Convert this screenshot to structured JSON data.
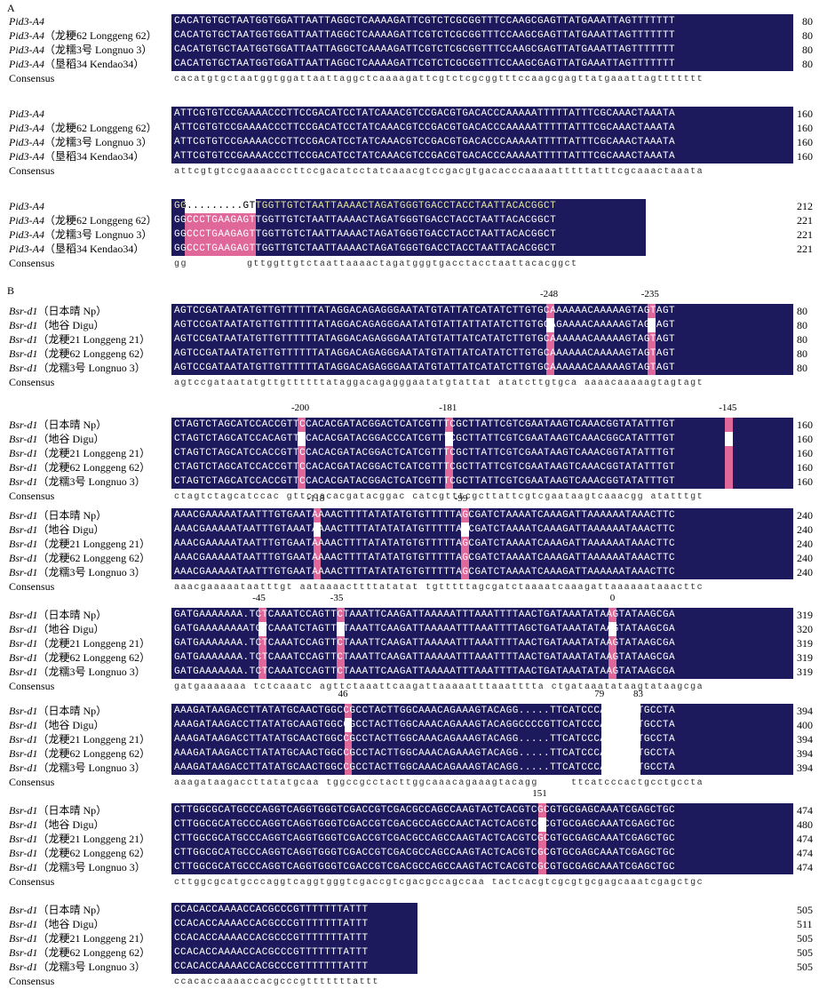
{
  "figure": {
    "panel_a": "A",
    "panel_b": "B",
    "consensus_label": "Consensus"
  },
  "panel_a": {
    "names": [
      {
        "gene": "Pid3-A4",
        "variety": ""
      },
      {
        "gene": "Pid3-A4",
        "variety": "（龙粳62 Longgeng 62）"
      },
      {
        "gene": "Pid3-A4",
        "variety": "（龙糯3号 Longnuo 3）"
      },
      {
        "gene": "Pid3-A4",
        "variety": "（垦稻34 Kendao34）"
      }
    ],
    "blocks": [
      {
        "seqs": [
          "CACATGTGCTAATGGTGGATTAATTAGGCTCAAAAGATTCGTCTCGCGGTTTCCAAGCGAGTTATGAAATTAGTTTTTTT",
          "CACATGTGCTAATGGTGGATTAATTAGGCTCAAAAGATTCGTCTCGCGGTTTCCAAGCGAGTTATGAAATTAGTTTTTTT",
          "CACATGTGCTAATGGTGGATTAATTAGGCTCAAAAGATTCGTCTCGCGGTTTCCAAGCGAGTTATGAAATTAGTTTTTTT",
          "CACATGTGCTAATGGTGGATTAATTAGGCTCAAAAGATTCGTCTCGCGGTTTCCAAGCGAGTTATGAAATTAGTTTTTTT"
        ],
        "consensus": "cacatgtgctaatggtggattaattaggctcaaaagattcgtctcgcggtttccaagcgagttatgaaattagttttttt",
        "ends": [
          "80",
          "80",
          "80",
          "80"
        ]
      },
      {
        "seqs": [
          "ATTCGTGTCCGAAAACCCTTCCGACATCCTATCAAACGTCCGACGTGACACCCAAAAATTTTTATTTCGCAAACTAAATA",
          "ATTCGTGTCCGAAAACCCTTCCGACATCCTATCAAACGTCCGACGTGACACCCAAAAATTTTTATTTCGCAAACTAAATA",
          "ATTCGTGTCCGAAAACCCTTCCGACATCCTATCAAACGTCCGACGTGACACCCAAAAATTTTTATTTCGCAAACTAAATA",
          "ATTCGTGTCCGAAAACCCTTCCGACATCCTATCAAACGTCCGACGTGACACCCAAAAATTTTTATTTCGCAAACTAAATA"
        ],
        "consensus": "attcgtgtccgaaaacccttccgacatcctatcaaacgtccgacgtgacacccaaaaatttttatttcgcaaactaaata",
        "ends": [
          "160",
          "160",
          "160",
          "160"
        ]
      },
      {
        "seqs": [
          "GG.........GTTGGTTGTCTAATTAAAACTAGATGGGTGACCTACCTAATTACACGGCT",
          "GGCCCTGAAGAGTTGGTTGTCTAATTAAAACTAGATGGGTGACCTACCTAATTACACGGCT",
          "GGCCCTGAAGAGTTGGTTGTCTAATTAAAACTAGATGGGTGACCTACCTAATTACACGGCT",
          "GGCCCTGAAGAGTTGGTTGTCTAATTAAAACTAGATGGGTGACCTACCTAATTACACGGCT"
        ],
        "consensus": "gg         gttggttgtctaattaaaactagatgggtgacctacctaattacacggct",
        "ends": [
          "212",
          "221",
          "221",
          "221"
        ]
      }
    ]
  },
  "panel_b": {
    "names": [
      {
        "gene": "Bsr-d1",
        "variety": "（日本晴  Np）"
      },
      {
        "gene": "Bsr-d1",
        "variety": "（地谷 Digu）"
      },
      {
        "gene": "Bsr-d1",
        "variety": "（龙粳21 Longgeng 21）"
      },
      {
        "gene": "Bsr-d1",
        "variety": "（龙粳62 Longgeng 62）"
      },
      {
        "gene": "Bsr-d1",
        "variety": "（龙糯3号 Longnuo 3）"
      }
    ],
    "blocks": [
      {
        "positions": [
          "-248",
          "-235"
        ],
        "seqs": [
          "AGTCCGATAATATGTTGTTTTTTATAGGACAGAGGGAATATGTATTATCATATCTTGTGCAAAAAACAAAAAGTAGTAGT",
          "AGTCCGATAATATGTTGTTTTTTATAGGACAGAGGGAATATGTATTATTATATCTTGTGCAGAAAACAAAAAGTAGTAGT",
          "AGTCCGATAATATGTTGTTTTTTATAGGACAGAGGGAATATGTATTATCATATCTTGTGCAAAAAACAAAAAGTAGTAGT",
          "AGTCCGATAATATGTTGTTTTTTATAGGACAGAGGGAATATGTATTATCATATCTTGTGCAAAAAACAAAAAGTAGTAGT",
          "AGTCCGATAATATGTTGTTTTTTATAGGACAGAGGGAATATGTATTATCATATCTTGTGCAAAAAACAAAAAGTAGTAGT"
        ],
        "consensus": "agtccgataatatgttgttttttataggacagagggaatatgtattat atatcttgtgca aaaacaaaaagtagtagt",
        "ends": [
          "80",
          "80",
          "80",
          "80",
          "80"
        ]
      },
      {
        "positions": [
          "-200",
          "-181",
          "-145"
        ],
        "seqs": [
          "CTAGTCTAGCATCCACCGTTCCACACGATACGGACTCATCGTTTCGCTTATTCGTCGAATAAGTCAAACGGTATATTTGT",
          "CTAGTCTAGCATCCACAGTTCCACACGATACGGACCCATCGTTTCGCTTATTCGTCGAATAAGTCAAACGGCATATTTGT",
          "CTAGTCTAGCATCCACCGTTCCACACGATACGGACTCATCGTTTCGCTTATTCGTCGAATAAGTCAAACGGTATATTTGT",
          "CTAGTCTAGCATCCACCGTTCCACACGATACGGACTCATCGTTTCGCTTATTCGTCGAATAAGTCAAACGGTATATTTGT",
          "CTAGTCTAGCATCCACCGTTCCACACGATACGGACTCATCGTTTCGCTTATTCGTCGAATAAGTCAAACGGTATATTTGT"
        ],
        "consensus": "ctagtctagcatccac gttccacacgatacggac catcgtttcgcttattcgtcgaataagtcaaacgg atatttgt",
        "ends": [
          "160",
          "160",
          "160",
          "160",
          "160"
        ]
      },
      {
        "positions": [
          "-118",
          "-99"
        ],
        "seqs": [
          "AAACGAAAAATAATTTGTGAATAAAACTTTTATATATGTGTTTTTAGCGATCTAAAATCAAAGATTAAAAAATAAACTTC",
          "AAACGAAAAATAATTTGTAAATAAAACTTTTATATATATGTTTTTAGCGATCTAAAATCAAAGATTAAAAAATAAACTTC",
          "AAACGAAAAATAATTTGTGAATAAAACTTTTATATATGTGTTTTTAGCGATCTAAAATCAAAGATTAAAAAATAAACTTC",
          "AAACGAAAAATAATTTGTGAATAAAACTTTTATATATGTGTTTTTAGCGATCTAAAATCAAAGATTAAAAAATAAACTTC",
          "AAACGAAAAATAATTTGTGAATAAAACTTTTATATATGTGTTTTTAGCGATCTAAAATCAAAGATTAAAAAATAAACTTC"
        ],
        "consensus": "aaacgaaaaataatttgt aataaaacttttatatat tgtttttagcgatctaaaatcaaagattaaaaaataaacttc",
        "ends": [
          "240",
          "240",
          "240",
          "240",
          "240"
        ]
      },
      {
        "positions": [
          "-45",
          "-35",
          "0"
        ],
        "seqs": [
          "GATGAAAAAAA.TCTCAAATCCAGTTCTAAATTCAAGATTAAAAATTTAAATTTTAACTGATAAATATAAGTATAAGCGA",
          "GATGAAAAAAAATCTCAAATCTAGTTCTAAATTCAAGATTAAAAATTTAAATTTTAGCTGATAAATATAAGTATAAGCGA",
          "GATGAAAAAAA.TCTCAAATCCAGTTCTAAATTCAAGATTAAAAATTTAAATTTTAACTGATAAATATAAGTATAAGCGA",
          "GATGAAAAAAA.TCTCAAATCCAGTTCTAAATTCAAGATTAAAAATTTAAATTTTAACTGATAAATATAAGTATAAGCGA",
          "GATGAAAAAAA.TCTCAAATCCAGTTCTAAATTCAAGATTAAAAATTTAAATTTTAACTGATAAATATAAGTATAAGCGA"
        ],
        "consensus": "gatgaaaaaaa tctcaaatc agttctaaattcaagattaaaaatttaaatttta ctgataaatataagtataagcga",
        "ends": [
          "319",
          "320",
          "319",
          "319",
          "319"
        ]
      },
      {
        "positions": [
          "46",
          "79",
          "83"
        ],
        "seqs": [
          "AAAGATAAGACCTTATATGCAACTGGCCGCCTACTTGGCAAACAGAAAGTACAGG.....TTCATCCCACTGCCTGCCTA",
          "AAAGATAAGACCTTATATGCAAGTGGCCGCCTACTTGGCAAACAGAAAGTACAGGCCCCGTTCATCCCACTGCCTGCCTA",
          "AAAGATAAGACCTTATATGCAACTGGCCGCCTACTTGGCAAACAGAAAGTACAGG.....TTCATCCCACTGCCTGCCTA",
          "AAAGATAAGACCTTATATGCAACTGGCCGCCTACTTGGCAAACAGAAAGTACAGG.....TTCATCCCACTGCCTGCCTA",
          "AAAGATAAGACCTTATATGCAACTGGCCGCCTACTTGGCAAACAGAAAGTACAGG.....TTCATCCCACTGCCTGCCTA"
        ],
        "consensus": "aaagataagaccttatatgcaa tggccgcctacttggcaaacagaaagtacagg     ttcatcccactgcctgccta",
        "ends": [
          "394",
          "400",
          "394",
          "394",
          "394"
        ]
      },
      {
        "positions": [
          "151"
        ],
        "seqs": [
          "CTTGGCGCATGCCCAGGTCAGGTGGGTCGACCGTCGACGCCAGCCAAGTACTCACGTCGCGTGCGAGCAAATCGAGCTGC",
          "CTTGGCGCATGCCCAGGTCAGGTGGGTCGACCGTCGACGCCAGCCAACTACTCACGTCGCGTGCGAGCAAATCGAGCTGC",
          "CTTGGCGCATGCCCAGGTCAGGTGGGTCGACCGTCGACGCCAGCCAAGTACTCACGTCGCGTGCGAGCAAATCGAGCTGC",
          "CTTGGCGCATGCCCAGGTCAGGTGGGTCGACCGTCGACGCCAGCCAAGTACTCACGTCGCGTGCGAGCAAATCGAGCTGC",
          "CTTGGCGCATGCCCAGGTCAGGTGGGTCGACCGTCGACGCCAGCCAAGTACTCACGTCGCGTGCGAGCAAATCGAGCTGC"
        ],
        "consensus": "cttggcgcatgcccaggtcaggtgggtcgaccgtcgacgccagccaa tactcacgtcgcgtgcgagcaaatcgagctgc",
        "ends": [
          "474",
          "480",
          "474",
          "474",
          "474"
        ]
      },
      {
        "positions": [],
        "seqs": [
          "CCACACCAAAACCACGCCCGTTTTTTTATTT",
          "CCACACCAAAACCACGCCCGTTTTTTTATTT",
          "CCACACCAAAACCACGCCCGTTTTTTTATTT",
          "CCACACCAAAACCACGCCCGTTTTTTTATTT",
          "CCACACCAAAACCACGCCCGTTTTTTTATTT"
        ],
        "consensus": "ccacaccaaaaccacgcccgtttttttattt",
        "ends": [
          "505",
          "511",
          "505",
          "505",
          "505"
        ]
      }
    ]
  }
}
